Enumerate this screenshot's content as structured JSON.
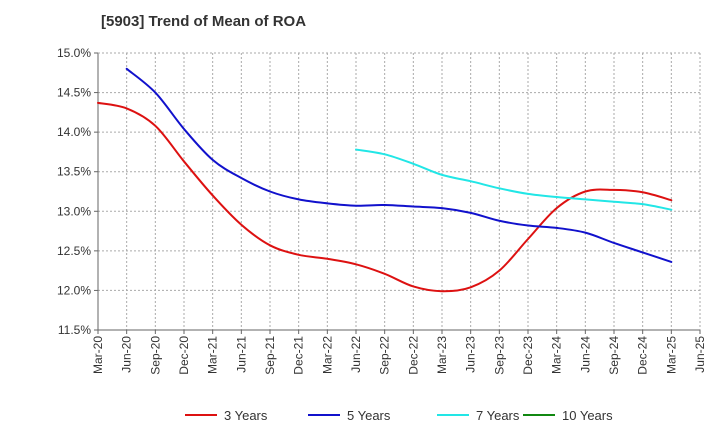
{
  "chart_data": {
    "type": "line",
    "title": "[5903]  Trend of Mean of ROA",
    "xlabel": "",
    "ylabel": "",
    "x": [
      "Mar-20",
      "Jun-20",
      "Sep-20",
      "Dec-20",
      "Mar-21",
      "Jun-21",
      "Sep-21",
      "Dec-21",
      "Mar-22",
      "Jun-22",
      "Sep-22",
      "Dec-22",
      "Mar-23",
      "Jun-23",
      "Sep-23",
      "Dec-23",
      "Mar-24",
      "Jun-24",
      "Sep-24",
      "Dec-24",
      "Mar-25",
      "Jun-25"
    ],
    "ylim": [
      11.5,
      15.0
    ],
    "yticks": [
      11.5,
      12.0,
      12.5,
      13.0,
      13.5,
      14.0,
      14.5,
      15.0
    ],
    "ytick_labels": [
      "11.5%",
      "12.0%",
      "12.5%",
      "13.0%",
      "13.5%",
      "14.0%",
      "14.5%",
      "15.0%"
    ],
    "grid": true,
    "legend_position": "bottom",
    "series": [
      {
        "name": "3 Years",
        "color": "#dd1111",
        "values": [
          14.37,
          14.3,
          14.08,
          13.63,
          13.2,
          12.83,
          12.57,
          12.45,
          12.4,
          12.33,
          12.21,
          12.05,
          11.99,
          12.04,
          12.25,
          12.65,
          13.04,
          13.25,
          13.27,
          13.24,
          13.14,
          null
        ]
      },
      {
        "name": "5 Years",
        "color": "#1111cc",
        "values": [
          null,
          14.8,
          14.5,
          14.04,
          13.65,
          13.42,
          13.25,
          13.15,
          13.1,
          13.07,
          13.08,
          13.06,
          13.04,
          12.98,
          12.88,
          12.82,
          12.79,
          12.73,
          12.6,
          12.48,
          12.36,
          null
        ]
      },
      {
        "name": "7 Years",
        "color": "#22e6e6",
        "values": [
          null,
          null,
          null,
          null,
          null,
          null,
          null,
          null,
          null,
          13.78,
          13.72,
          13.6,
          13.46,
          13.38,
          13.29,
          13.22,
          13.18,
          13.15,
          13.12,
          13.09,
          13.02,
          null
        ]
      },
      {
        "name": "10 Years",
        "color": "#118811",
        "values": [
          null,
          null,
          null,
          null,
          null,
          null,
          null,
          null,
          null,
          null,
          null,
          null,
          null,
          null,
          null,
          null,
          null,
          null,
          null,
          null,
          null,
          null
        ]
      }
    ]
  }
}
